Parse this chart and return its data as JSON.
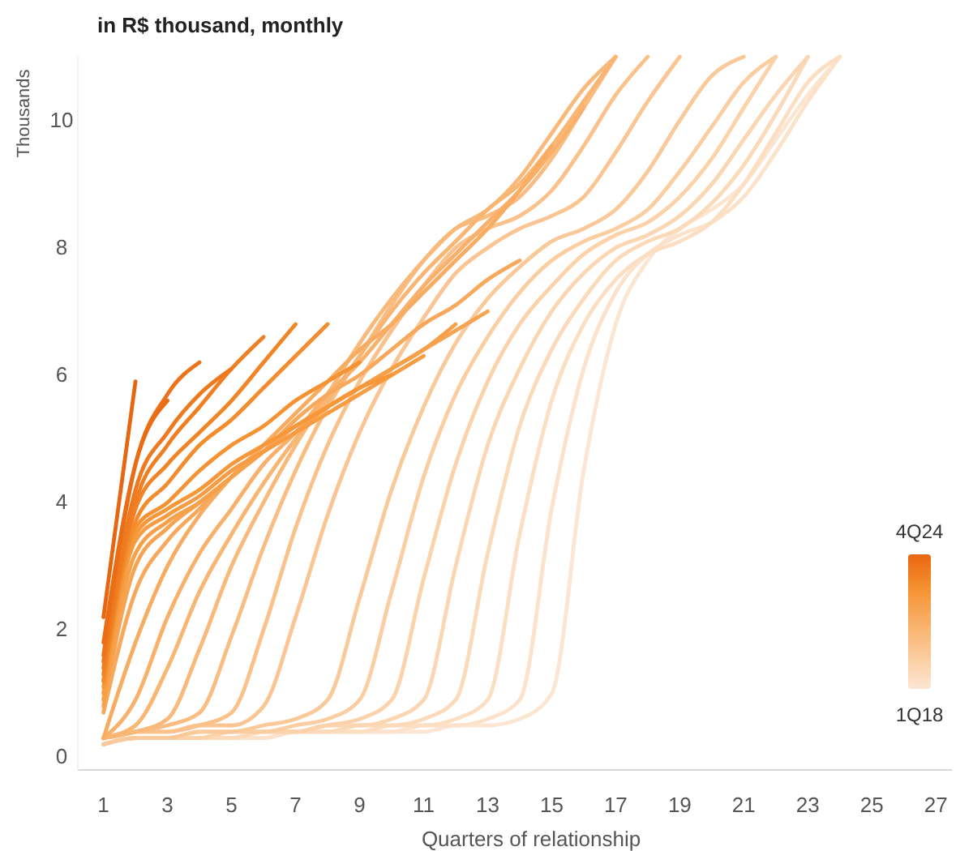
{
  "chart_data": {
    "type": "line",
    "subtitle": "in R$ thousand, monthly",
    "ylabel": "Thousands",
    "xlabel": "Quarters of relationship",
    "x": [
      1,
      2,
      3,
      4,
      5,
      6,
      7,
      8,
      9,
      10,
      11,
      12,
      13,
      14,
      15,
      16,
      17,
      18,
      19,
      20,
      21,
      22,
      23,
      24
    ],
    "xlim": [
      0.2,
      27.5
    ],
    "xticks": [
      1,
      3,
      5,
      7,
      9,
      11,
      13,
      15,
      17,
      19,
      21,
      23,
      25,
      27
    ],
    "ylim": [
      -0.2,
      11
    ],
    "yticks": [
      0,
      2,
      4,
      6,
      8,
      10
    ],
    "grid": false,
    "annotations": [
      "4Q24",
      "1Q18"
    ],
    "series": [
      {
        "color": "#fce6d2",
        "values": [
          0.2,
          0.3,
          0.3,
          0.3,
          0.3,
          0.3,
          0.4,
          0.4,
          0.4,
          0.4,
          0.4,
          0.5,
          0.5,
          0.6,
          1.0,
          4.5,
          6.8,
          7.8,
          8.3,
          8.6,
          9.0,
          9.7,
          10.4,
          11.0
        ]
      },
      {
        "color": "#fce2ca",
        "values": [
          0.2,
          0.3,
          0.3,
          0.3,
          0.3,
          0.3,
          0.4,
          0.4,
          0.4,
          0.4,
          0.5,
          0.5,
          0.6,
          0.9,
          3.9,
          6.1,
          7.3,
          7.9,
          8.2,
          8.4,
          8.8,
          9.5,
          10.3,
          11.0
        ]
      },
      {
        "color": "#fcdec2",
        "values": [
          0.2,
          0.3,
          0.3,
          0.3,
          0.3,
          0.4,
          0.4,
          0.4,
          0.4,
          0.5,
          0.5,
          0.6,
          0.9,
          3.5,
          5.6,
          6.8,
          7.5,
          7.9,
          8.1,
          8.4,
          9.0,
          9.8,
          10.6,
          11.0
        ]
      },
      {
        "color": "#fbdaba",
        "values": [
          0.2,
          0.3,
          0.3,
          0.3,
          0.3,
          0.4,
          0.4,
          0.4,
          0.5,
          0.5,
          0.6,
          0.9,
          3.2,
          5.2,
          6.4,
          7.2,
          7.8,
          8.1,
          8.3,
          8.7,
          9.3,
          10.1,
          11.0,
          null
        ]
      },
      {
        "color": "#fbd6b2",
        "values": [
          0.2,
          0.3,
          0.3,
          0.3,
          0.4,
          0.4,
          0.4,
          0.5,
          0.5,
          0.6,
          0.9,
          3.0,
          4.9,
          6.1,
          7.0,
          7.6,
          8.0,
          8.2,
          8.5,
          9.0,
          9.7,
          10.4,
          11.0,
          null
        ]
      },
      {
        "color": "#fbd2aa",
        "values": [
          0.2,
          0.3,
          0.3,
          0.3,
          0.4,
          0.4,
          0.4,
          0.5,
          0.6,
          0.9,
          2.8,
          4.6,
          5.9,
          6.8,
          7.4,
          7.9,
          8.2,
          8.4,
          8.8,
          9.4,
          10.2,
          11.0,
          null,
          null
        ]
      },
      {
        "color": "#fbcea2",
        "values": [
          0.2,
          0.3,
          0.3,
          0.4,
          0.4,
          0.4,
          0.5,
          0.6,
          0.9,
          2.6,
          4.4,
          5.7,
          6.6,
          7.3,
          7.8,
          8.1,
          8.3,
          8.6,
          9.2,
          9.9,
          10.6,
          11.0,
          null,
          null
        ]
      },
      {
        "color": "#fac99a",
        "values": [
          0.2,
          0.3,
          0.3,
          0.4,
          0.4,
          0.5,
          0.6,
          0.9,
          2.5,
          4.2,
          5.5,
          6.5,
          7.2,
          7.7,
          8.1,
          8.3,
          8.6,
          9.2,
          10.0,
          10.7,
          11.0,
          null,
          null,
          null
        ]
      },
      {
        "color": "#fac592",
        "values": [
          0.3,
          0.4,
          0.4,
          0.5,
          0.5,
          0.8,
          2.2,
          3.8,
          5.1,
          6.1,
          6.9,
          7.6,
          8.0,
          8.3,
          8.5,
          8.8,
          9.5,
          10.3,
          11.0,
          null,
          null,
          null,
          null,
          null
        ]
      },
      {
        "color": "#fac18a",
        "values": [
          0.3,
          0.4,
          0.4,
          0.5,
          0.7,
          2.0,
          3.6,
          4.9,
          5.9,
          6.7,
          7.4,
          8.0,
          8.3,
          8.5,
          8.9,
          9.6,
          10.4,
          11.0,
          null,
          null,
          null,
          null,
          null,
          null
        ]
      },
      {
        "color": "#f9bd82",
        "values": [
          0.3,
          0.4,
          0.5,
          0.7,
          1.9,
          3.3,
          4.5,
          5.5,
          6.3,
          7.1,
          7.8,
          8.3,
          8.5,
          8.8,
          9.4,
          10.2,
          11.0,
          null,
          null,
          null,
          null,
          null,
          null,
          null
        ]
      },
      {
        "color": "#f9b97a",
        "values": [
          0.3,
          0.4,
          0.6,
          1.7,
          3.0,
          4.0,
          4.9,
          5.7,
          6.5,
          7.2,
          7.8,
          8.3,
          8.6,
          9.1,
          9.8,
          10.5,
          11.0,
          null,
          null,
          null,
          null,
          null,
          null,
          null
        ]
      },
      {
        "color": "#f9b572",
        "values": [
          0.3,
          0.5,
          1.4,
          2.6,
          3.5,
          4.3,
          5.0,
          5.6,
          6.3,
          7.0,
          7.6,
          8.1,
          8.6,
          9.0,
          9.6,
          10.3,
          11.0,
          null,
          null,
          null,
          null,
          null,
          null,
          null
        ]
      },
      {
        "color": "#f8b06a",
        "values": [
          0.3,
          0.9,
          2.2,
          3.2,
          3.9,
          4.6,
          5.1,
          5.7,
          6.2,
          6.8,
          7.4,
          7.9,
          8.4,
          8.9,
          9.5,
          10.2,
          null,
          null,
          null,
          null,
          null,
          null,
          null,
          null
        ]
      },
      {
        "color": "#f8ac62",
        "values": [
          0.3,
          1.8,
          3.0,
          3.8,
          4.4,
          4.9,
          5.4,
          5.9,
          6.4,
          6.8,
          7.3,
          7.8,
          8.3,
          8.9,
          9.6,
          null,
          null,
          null,
          null,
          null,
          null,
          null,
          null,
          null
        ]
      },
      {
        "color": "#f8a85a",
        "values": [
          0.7,
          2.6,
          3.4,
          3.9,
          4.4,
          4.8,
          5.3,
          5.7,
          6.0,
          6.4,
          6.8,
          7.1,
          7.5,
          7.8,
          null,
          null,
          null,
          null,
          null,
          null,
          null,
          null,
          null,
          null
        ]
      },
      {
        "color": "#f7a452",
        "values": [
          0.8,
          3.0,
          3.6,
          4.0,
          4.4,
          4.8,
          5.2,
          5.5,
          5.8,
          6.1,
          6.4,
          6.7,
          7.0,
          null,
          null,
          null,
          null,
          null,
          null,
          null,
          null,
          null,
          null,
          null
        ]
      },
      {
        "color": "#f7a04a",
        "values": [
          0.9,
          3.2,
          3.7,
          4.0,
          4.4,
          4.8,
          5.1,
          5.5,
          5.8,
          6.1,
          6.4,
          6.8,
          null,
          null,
          null,
          null,
          null,
          null,
          null,
          null,
          null,
          null,
          null,
          null
        ]
      },
      {
        "color": "#f79c42",
        "values": [
          1.0,
          3.4,
          3.8,
          4.1,
          4.5,
          4.8,
          5.1,
          5.4,
          5.7,
          6.0,
          6.3,
          null,
          null,
          null,
          null,
          null,
          null,
          null,
          null,
          null,
          null,
          null,
          null,
          null
        ]
      },
      {
        "color": "#f6973a",
        "values": [
          1.1,
          3.5,
          3.9,
          4.2,
          4.6,
          4.9,
          5.2,
          5.5,
          5.8,
          6.0,
          null,
          null,
          null,
          null,
          null,
          null,
          null,
          null,
          null,
          null,
          null,
          null,
          null,
          null
        ]
      },
      {
        "color": "#f59232",
        "values": [
          1.2,
          3.6,
          4.0,
          4.5,
          4.9,
          5.2,
          5.6,
          5.9,
          6.2,
          null,
          null,
          null,
          null,
          null,
          null,
          null,
          null,
          null,
          null,
          null,
          null,
          null,
          null,
          null
        ]
      },
      {
        "color": "#f38c2c",
        "values": [
          1.2,
          3.7,
          4.3,
          4.9,
          5.3,
          5.8,
          6.3,
          6.8,
          null,
          null,
          null,
          null,
          null,
          null,
          null,
          null,
          null,
          null,
          null,
          null,
          null,
          null,
          null,
          null
        ]
      },
      {
        "color": "#f18526",
        "values": [
          1.3,
          3.9,
          4.6,
          5.1,
          5.6,
          6.2,
          6.8,
          null,
          null,
          null,
          null,
          null,
          null,
          null,
          null,
          null,
          null,
          null,
          null,
          null,
          null,
          null,
          null,
          null
        ]
      },
      {
        "color": "#ef7f22",
        "values": [
          1.4,
          4.0,
          4.9,
          5.5,
          6.1,
          6.6,
          null,
          null,
          null,
          null,
          null,
          null,
          null,
          null,
          null,
          null,
          null,
          null,
          null,
          null,
          null,
          null,
          null,
          null
        ]
      },
      {
        "color": "#ee791e",
        "values": [
          1.5,
          4.2,
          5.1,
          5.7,
          6.1,
          null,
          null,
          null,
          null,
          null,
          null,
          null,
          null,
          null,
          null,
          null,
          null,
          null,
          null,
          null,
          null,
          null,
          null,
          null
        ]
      },
      {
        "color": "#ec731a",
        "values": [
          1.6,
          4.6,
          5.7,
          6.2,
          null,
          null,
          null,
          null,
          null,
          null,
          null,
          null,
          null,
          null,
          null,
          null,
          null,
          null,
          null,
          null,
          null,
          null,
          null,
          null
        ]
      },
      {
        "color": "#ea6d16",
        "values": [
          1.8,
          4.6,
          5.6,
          null,
          null,
          null,
          null,
          null,
          null,
          null,
          null,
          null,
          null,
          null,
          null,
          null,
          null,
          null,
          null,
          null,
          null,
          null,
          null,
          null
        ]
      },
      {
        "color": "#e86612",
        "values": [
          2.2,
          5.9,
          null,
          null,
          null,
          null,
          null,
          null,
          null,
          null,
          null,
          null,
          null,
          null,
          null,
          null,
          null,
          null,
          null,
          null,
          null,
          null,
          null,
          null
        ]
      }
    ]
  }
}
